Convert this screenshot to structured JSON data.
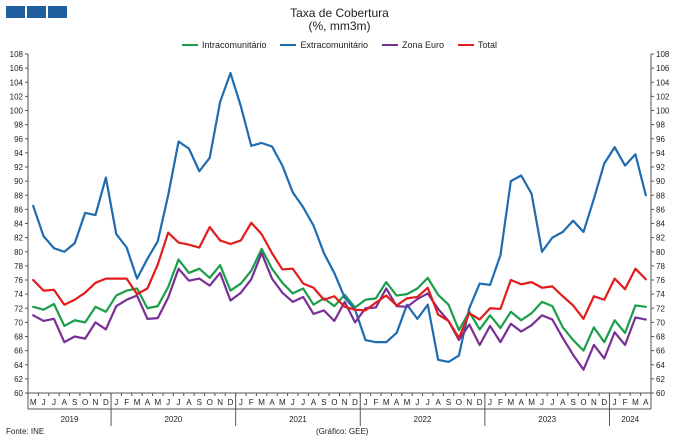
{
  "header": {
    "logo_icon": "ine-logo-icon",
    "title_line1": "Taxa de Cobertura",
    "title_line2": "(%, mm3m)"
  },
  "footer": {
    "source": "Fonte: INE",
    "credit": "(Gráfico: GEE)"
  },
  "chart_data": {
    "type": "line",
    "title": "Taxa de Cobertura",
    "subtitle": "(%, mm3m)",
    "xlabel": "",
    "ylabel": "",
    "ylim": [
      60,
      108
    ],
    "y_ticks": [
      60,
      62,
      64,
      66,
      68,
      70,
      72,
      74,
      76,
      78,
      80,
      82,
      84,
      86,
      88,
      90,
      92,
      94,
      96,
      98,
      100,
      102,
      104,
      106,
      108
    ],
    "grid": false,
    "legend_position": "top",
    "x": [
      "2019-05",
      "2019-06",
      "2019-07",
      "2019-08",
      "2019-09",
      "2019-10",
      "2019-11",
      "2019-12",
      "2020-01",
      "2020-02",
      "2020-03",
      "2020-04",
      "2020-05",
      "2020-06",
      "2020-07",
      "2020-08",
      "2020-09",
      "2020-10",
      "2020-11",
      "2020-12",
      "2021-01",
      "2021-02",
      "2021-03",
      "2021-04",
      "2021-05",
      "2021-06",
      "2021-07",
      "2021-08",
      "2021-09",
      "2021-10",
      "2021-11",
      "2021-12",
      "2022-01",
      "2022-02",
      "2022-03",
      "2022-04",
      "2022-05",
      "2022-06",
      "2022-07",
      "2022-08",
      "2022-09",
      "2022-10",
      "2022-11",
      "2022-12",
      "2023-01",
      "2023-02",
      "2023-03",
      "2023-04",
      "2023-05",
      "2023-06",
      "2023-07",
      "2023-08",
      "2023-09",
      "2023-10",
      "2023-11",
      "2023-12",
      "2024-01",
      "2024-02",
      "2024-03",
      "2024-04"
    ],
    "month_labels": [
      "M",
      "J",
      "J",
      "A",
      "S",
      "O",
      "N",
      "D",
      "J",
      "F",
      "M",
      "A",
      "M",
      "J",
      "J",
      "A",
      "S",
      "O",
      "N",
      "D",
      "J",
      "F",
      "M",
      "A",
      "M",
      "J",
      "J",
      "A",
      "S",
      "O",
      "N",
      "D",
      "J",
      "F",
      "M",
      "A",
      "M",
      "J",
      "J",
      "A",
      "S",
      "O",
      "N",
      "D",
      "J",
      "F",
      "M",
      "A",
      "M",
      "J",
      "J",
      "A",
      "S",
      "O",
      "N",
      "D",
      "J",
      "F",
      "M",
      "A"
    ],
    "years": [
      {
        "label": "2019",
        "start": 0,
        "end": 7
      },
      {
        "label": "2020",
        "start": 8,
        "end": 19
      },
      {
        "label": "2021",
        "start": 20,
        "end": 31
      },
      {
        "label": "2022",
        "start": 32,
        "end": 43
      },
      {
        "label": "2023",
        "start": 44,
        "end": 55
      },
      {
        "label": "2024",
        "start": 56,
        "end": 59
      }
    ],
    "series": [
      {
        "name": "Intracomunitário",
        "color": "#1a9e4a",
        "values": [
          72.2,
          71.8,
          72.6,
          69.5,
          70.3,
          70.0,
          72.2,
          71.5,
          73.8,
          74.5,
          74.8,
          72.0,
          72.3,
          75.0,
          78.9,
          77.0,
          77.6,
          76.3,
          78.1,
          74.5,
          75.5,
          77.3,
          80.4,
          77.6,
          75.6,
          74.1,
          74.8,
          72.5,
          73.4,
          72.3,
          73.9,
          72.1,
          73.2,
          73.4,
          75.7,
          73.8,
          74.0,
          74.8,
          76.3,
          73.9,
          72.5,
          68.9,
          71.5,
          69.0,
          71.0,
          69.2,
          71.5,
          70.3,
          71.3,
          72.9,
          72.3,
          69.3,
          67.5,
          66.0,
          69.3,
          67.2,
          70.3,
          68.5,
          72.4,
          72.2
        ]
      },
      {
        "name": "Extracomunitário",
        "color": "#1f6bb0",
        "values": [
          86.5,
          82.2,
          80.5,
          80.0,
          81.2,
          85.5,
          85.2,
          90.5,
          82.5,
          80.6,
          76.2,
          79.0,
          81.5,
          88.0,
          95.6,
          94.6,
          91.4,
          93.3,
          101.2,
          105.3,
          100.6,
          95.0,
          95.4,
          94.9,
          92.2,
          88.4,
          86.3,
          83.7,
          79.8,
          77.0,
          73.5,
          71.8,
          67.5,
          67.2,
          67.2,
          68.5,
          72.5,
          70.5,
          72.5,
          64.7,
          64.4,
          65.3,
          72.0,
          75.5,
          75.3,
          79.5,
          90.0,
          90.8,
          88.2,
          80.0,
          82.0,
          82.8,
          84.4,
          82.8,
          87.5,
          92.5,
          94.8,
          92.2,
          93.8,
          88.0
        ]
      },
      {
        "name": "Zona Euro",
        "color": "#7a2f95",
        "values": [
          71.0,
          70.2,
          70.5,
          67.2,
          68.0,
          67.7,
          70.0,
          69.0,
          72.3,
          73.2,
          73.8,
          70.5,
          70.6,
          73.5,
          77.6,
          75.9,
          76.2,
          75.2,
          77.0,
          73.1,
          74.2,
          76.1,
          79.8,
          76.2,
          74.2,
          72.9,
          73.6,
          71.2,
          71.7,
          70.2,
          72.9,
          70.0,
          72.0,
          72.1,
          74.8,
          72.3,
          72.2,
          73.3,
          74.1,
          71.9,
          70.2,
          67.5,
          69.7,
          66.8,
          69.5,
          67.2,
          69.8,
          68.7,
          69.6,
          71.0,
          70.4,
          67.8,
          65.4,
          63.3,
          66.8,
          64.9,
          68.6,
          66.8,
          70.7,
          70.4
        ]
      },
      {
        "name": "Total",
        "color": "#e31b1b",
        "values": [
          76.0,
          74.5,
          74.6,
          72.5,
          73.2,
          74.2,
          75.6,
          76.2,
          76.2,
          76.2,
          74.0,
          74.8,
          78.2,
          82.7,
          81.3,
          81.0,
          80.6,
          83.5,
          81.6,
          81.1,
          81.6,
          84.1,
          82.5,
          79.8,
          77.5,
          77.6,
          75.5,
          74.9,
          73.2,
          73.7,
          72.2,
          71.8,
          71.7,
          72.8,
          73.8,
          72.4,
          73.4,
          73.6,
          74.9,
          71.1,
          70.2,
          67.8,
          71.3,
          70.4,
          72.0,
          71.9,
          76.0,
          75.4,
          75.7,
          74.9,
          75.1,
          73.7,
          72.4,
          70.5,
          73.7,
          73.2,
          76.2,
          74.7,
          77.6,
          76.1
        ]
      }
    ]
  }
}
